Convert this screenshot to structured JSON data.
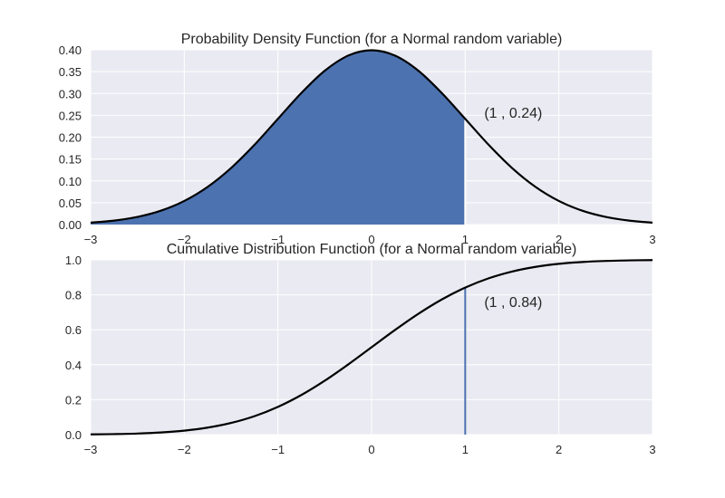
{
  "colors": {
    "axes_bg": "#EAEAF2",
    "grid": "#FFFFFF",
    "fill": "#4C72B0",
    "curve": "#000000",
    "text": "#262626"
  },
  "chart_data": [
    {
      "type": "area",
      "title": "Probability Density Function (for a Normal random variable)",
      "xlabel": "",
      "ylabel": "",
      "xlim": [
        -3,
        3
      ],
      "ylim": [
        0,
        0.4
      ],
      "grid": true,
      "x_ticks": [
        -3,
        -2,
        -1,
        0,
        1,
        2,
        3
      ],
      "x_tick_labels": [
        "−3",
        "−2",
        "−1",
        "0",
        "1",
        "2",
        "3"
      ],
      "y_ticks": [
        0,
        0.05,
        0.1,
        0.15,
        0.2,
        0.25,
        0.3,
        0.35,
        0.4
      ],
      "y_tick_labels": [
        "0.00",
        "0.05",
        "0.10",
        "0.15",
        "0.20",
        "0.25",
        "0.30",
        "0.35",
        "0.40"
      ],
      "x": [
        -3,
        -2.75,
        -2.5,
        -2.25,
        -2,
        -1.75,
        -1.5,
        -1.25,
        -1,
        -0.75,
        -0.5,
        -0.25,
        0,
        0.25,
        0.5,
        0.75,
        1,
        1.25,
        1.5,
        1.75,
        2,
        2.25,
        2.5,
        2.75,
        3
      ],
      "y": [
        0.0044,
        0.0091,
        0.0175,
        0.0317,
        0.054,
        0.0863,
        0.1295,
        0.1826,
        0.242,
        0.3011,
        0.3521,
        0.3867,
        0.3989,
        0.3867,
        0.3521,
        0.3011,
        0.242,
        0.1826,
        0.1295,
        0.0863,
        0.054,
        0.0317,
        0.0175,
        0.0091,
        0.0044
      ],
      "shaded_to_x": 1,
      "marker": {
        "x": 1,
        "y": 0.24
      },
      "annotation": "(1 , 0.24)"
    },
    {
      "type": "line",
      "title": "Cumulative Distribution Function (for a Normal random variable)",
      "xlabel": "",
      "ylabel": "",
      "xlim": [
        -3,
        3
      ],
      "ylim": [
        0,
        1
      ],
      "grid": true,
      "x_ticks": [
        -3,
        -2,
        -1,
        0,
        1,
        2,
        3
      ],
      "x_tick_labels": [
        "−3",
        "−2",
        "−1",
        "0",
        "1",
        "2",
        "3"
      ],
      "y_ticks": [
        0,
        0.2,
        0.4,
        0.6,
        0.8,
        1
      ],
      "y_tick_labels": [
        "0.0",
        "0.2",
        "0.4",
        "0.6",
        "0.8",
        "1.0"
      ],
      "x": [
        -3,
        -2.75,
        -2.5,
        -2.25,
        -2,
        -1.75,
        -1.5,
        -1.25,
        -1,
        -0.75,
        -0.5,
        -0.25,
        0,
        0.25,
        0.5,
        0.75,
        1,
        1.25,
        1.5,
        1.75,
        2,
        2.25,
        2.5,
        2.75,
        3
      ],
      "y": [
        0.0013,
        0.003,
        0.0062,
        0.0122,
        0.0228,
        0.0401,
        0.0668,
        0.1056,
        0.1587,
        0.2266,
        0.3085,
        0.4013,
        0.5,
        0.5987,
        0.6915,
        0.7734,
        0.8413,
        0.8944,
        0.9332,
        0.9599,
        0.9772,
        0.9878,
        0.9938,
        0.997,
        0.9987
      ],
      "marker": {
        "x": 1,
        "y": 0.84
      },
      "annotation": "(1 , 0.84)"
    }
  ]
}
